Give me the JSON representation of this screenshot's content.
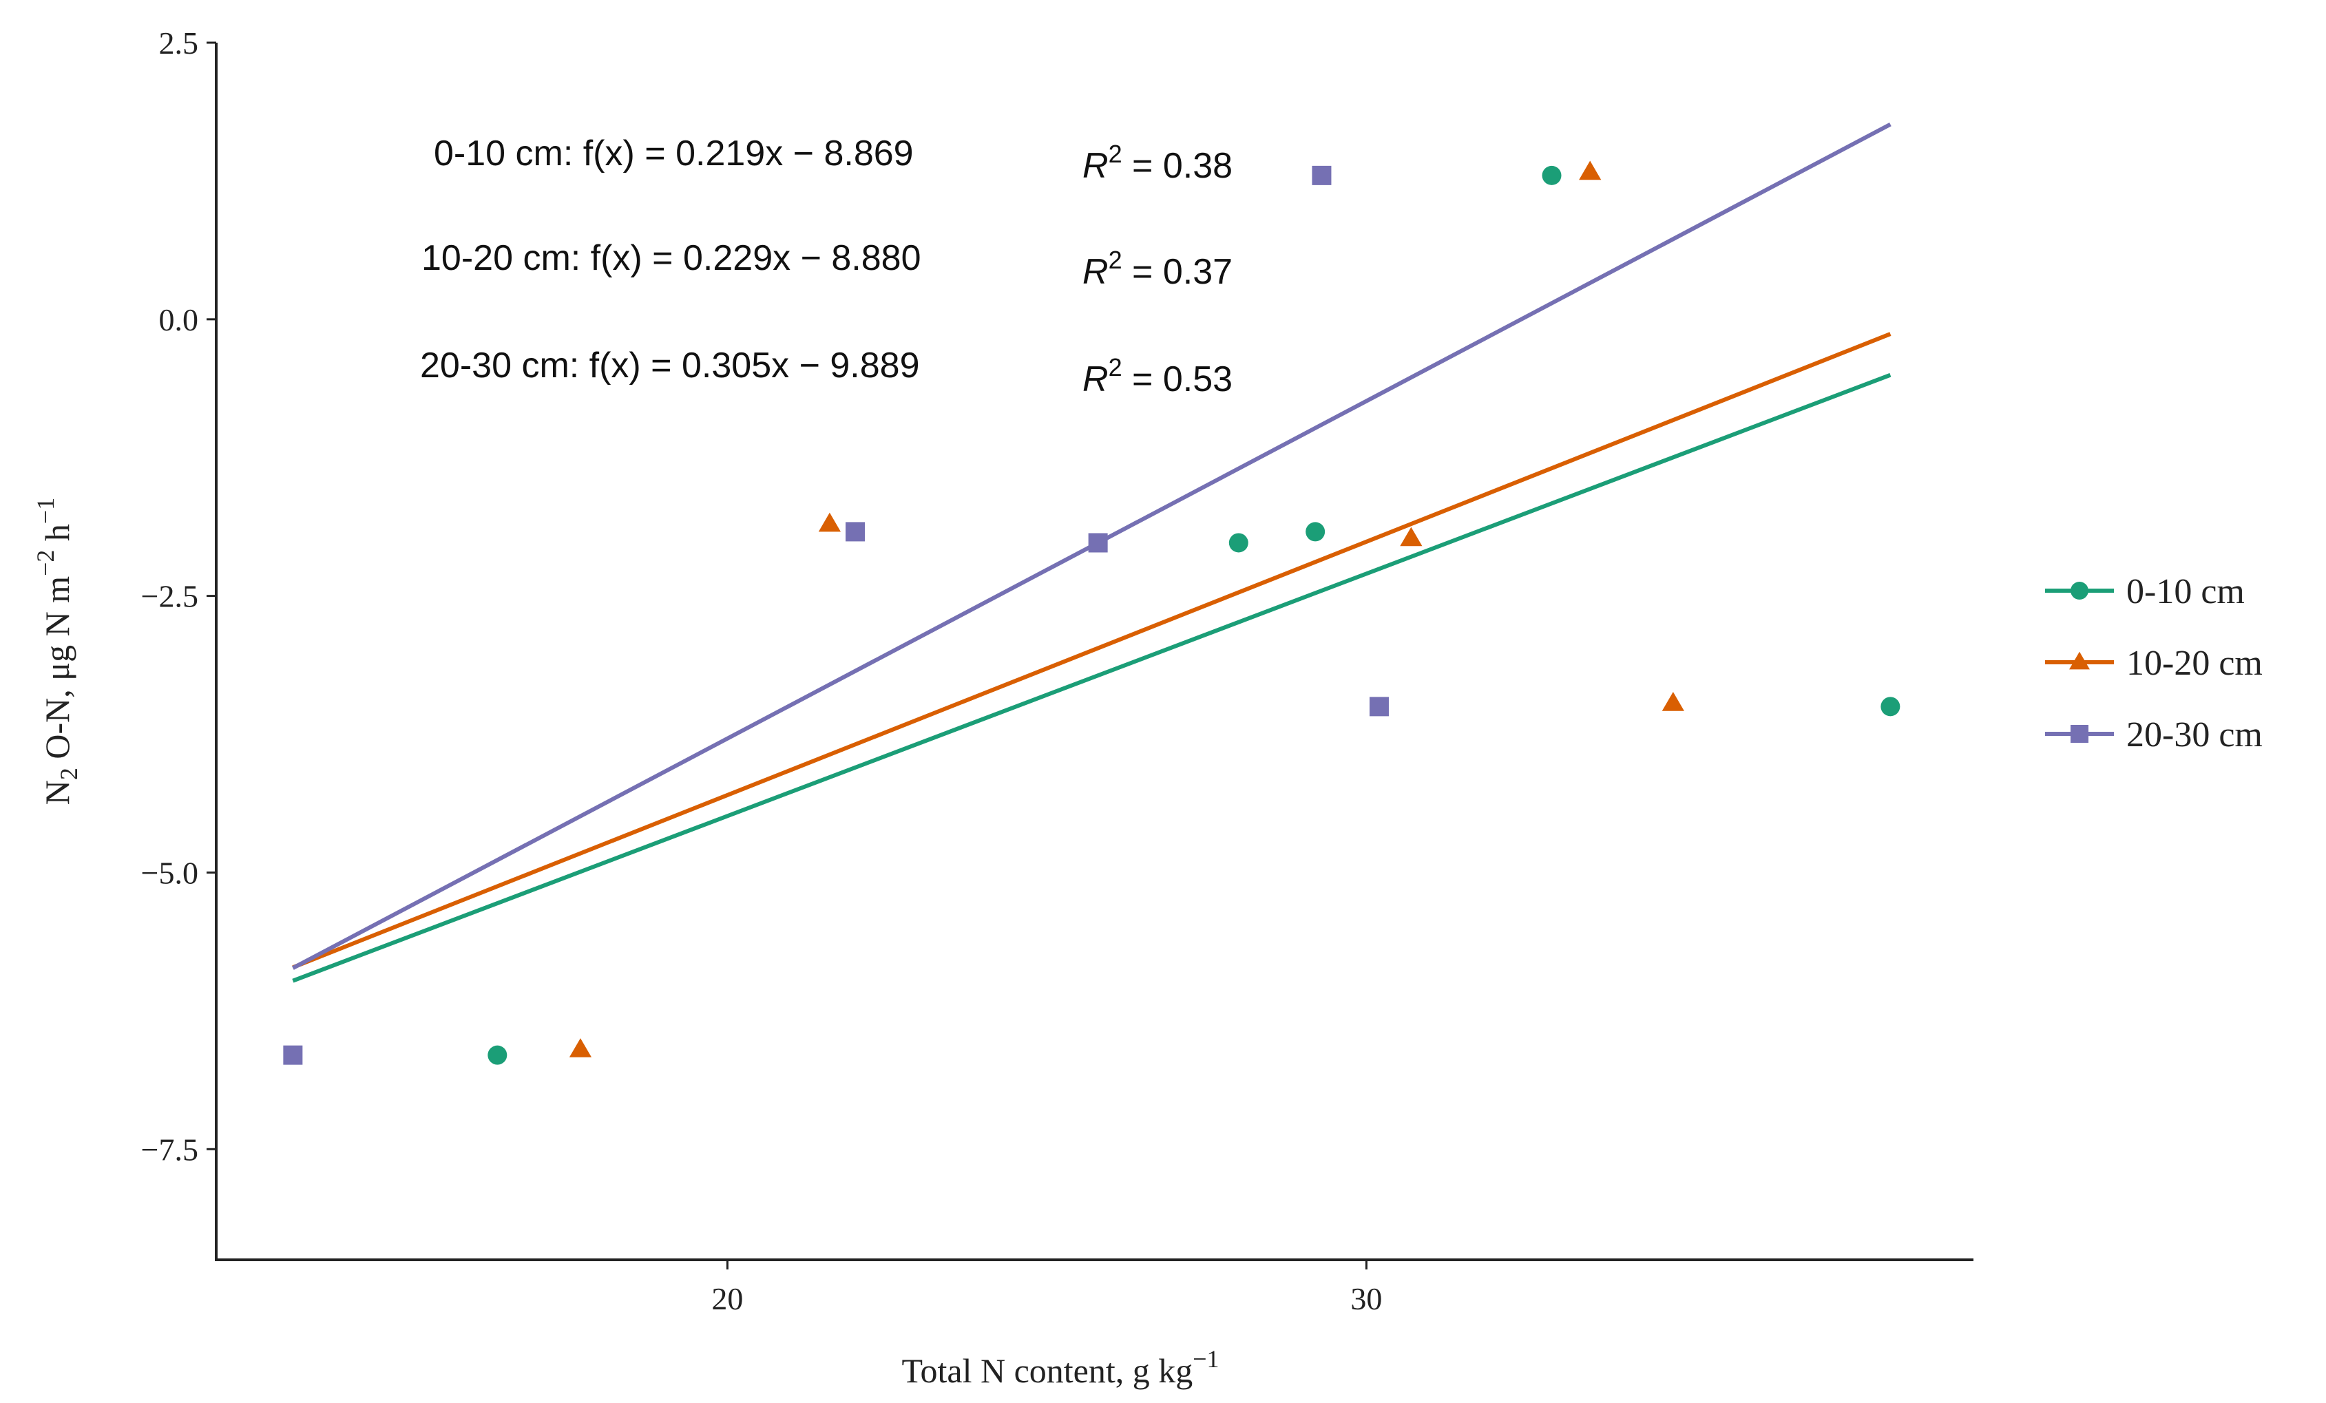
{
  "chart_data": {
    "type": "scatter",
    "xlabel_main": "Total N content, g kg",
    "xlabel_sup": "−1",
    "ylabel": {
      "a": "N",
      "sub2": "2",
      "b": " O-N, μg N m",
      "sup1": "−2",
      "c": " h",
      "sup2": "−1"
    },
    "xlim": [
      12.0,
      39.5
    ],
    "ylim": [
      -8.5,
      2.5
    ],
    "x_ticks": [
      20,
      30
    ],
    "x_tick_labels": [
      "20",
      "30"
    ],
    "y_ticks": [
      2.5,
      0.0,
      -2.5,
      -5.0,
      -7.5
    ],
    "y_tick_labels": [
      "2.5",
      "0.0",
      "−2.5",
      "−5.0",
      "−7.5"
    ],
    "grid": false,
    "legend_position": "right",
    "series": [
      {
        "name": "0-10 cm",
        "color": "#1b9e77",
        "marker": "circle",
        "points": [
          [
            16.4,
            -6.65
          ],
          [
            28.0,
            -2.02
          ],
          [
            29.2,
            -1.92
          ],
          [
            32.9,
            1.3
          ],
          [
            38.2,
            -3.5
          ]
        ],
        "fit": {
          "slope": 0.219,
          "intercept": -8.869,
          "x_range": [
            13.2,
            38.2
          ]
        },
        "equation": "0-10 cm: f(x) = 0.219x − 8.869",
        "r2_label": "R",
        "r2_sup": "2",
        "r2_value": " = 0.38"
      },
      {
        "name": "10-20 cm",
        "color": "#d95f02",
        "marker": "triangle",
        "points": [
          [
            17.7,
            -6.6
          ],
          [
            21.6,
            -1.85
          ],
          [
            30.7,
            -1.98
          ],
          [
            33.5,
            1.33
          ],
          [
            34.8,
            -3.47
          ]
        ],
        "fit": {
          "slope": 0.229,
          "intercept": -8.88,
          "x_range": [
            13.2,
            38.2
          ]
        },
        "equation": "10-20 cm: f(x) = 0.229x − 8.880",
        "r2_label": "R",
        "r2_sup": "2",
        "r2_value": " = 0.37"
      },
      {
        "name": "20-30 cm",
        "color": "#7570b3",
        "marker": "square",
        "points": [
          [
            13.2,
            -6.65
          ],
          [
            22.0,
            -1.92
          ],
          [
            25.8,
            -2.02
          ],
          [
            29.3,
            1.3
          ],
          [
            30.2,
            -3.5
          ]
        ],
        "fit": {
          "slope": 0.305,
          "intercept": -9.889,
          "x_range": [
            13.2,
            38.2
          ]
        },
        "equation": "20-30 cm: f(x) = 0.305x − 9.889",
        "r2_label": "R",
        "r2_sup": "2",
        "r2_value": " = 0.53"
      }
    ]
  }
}
